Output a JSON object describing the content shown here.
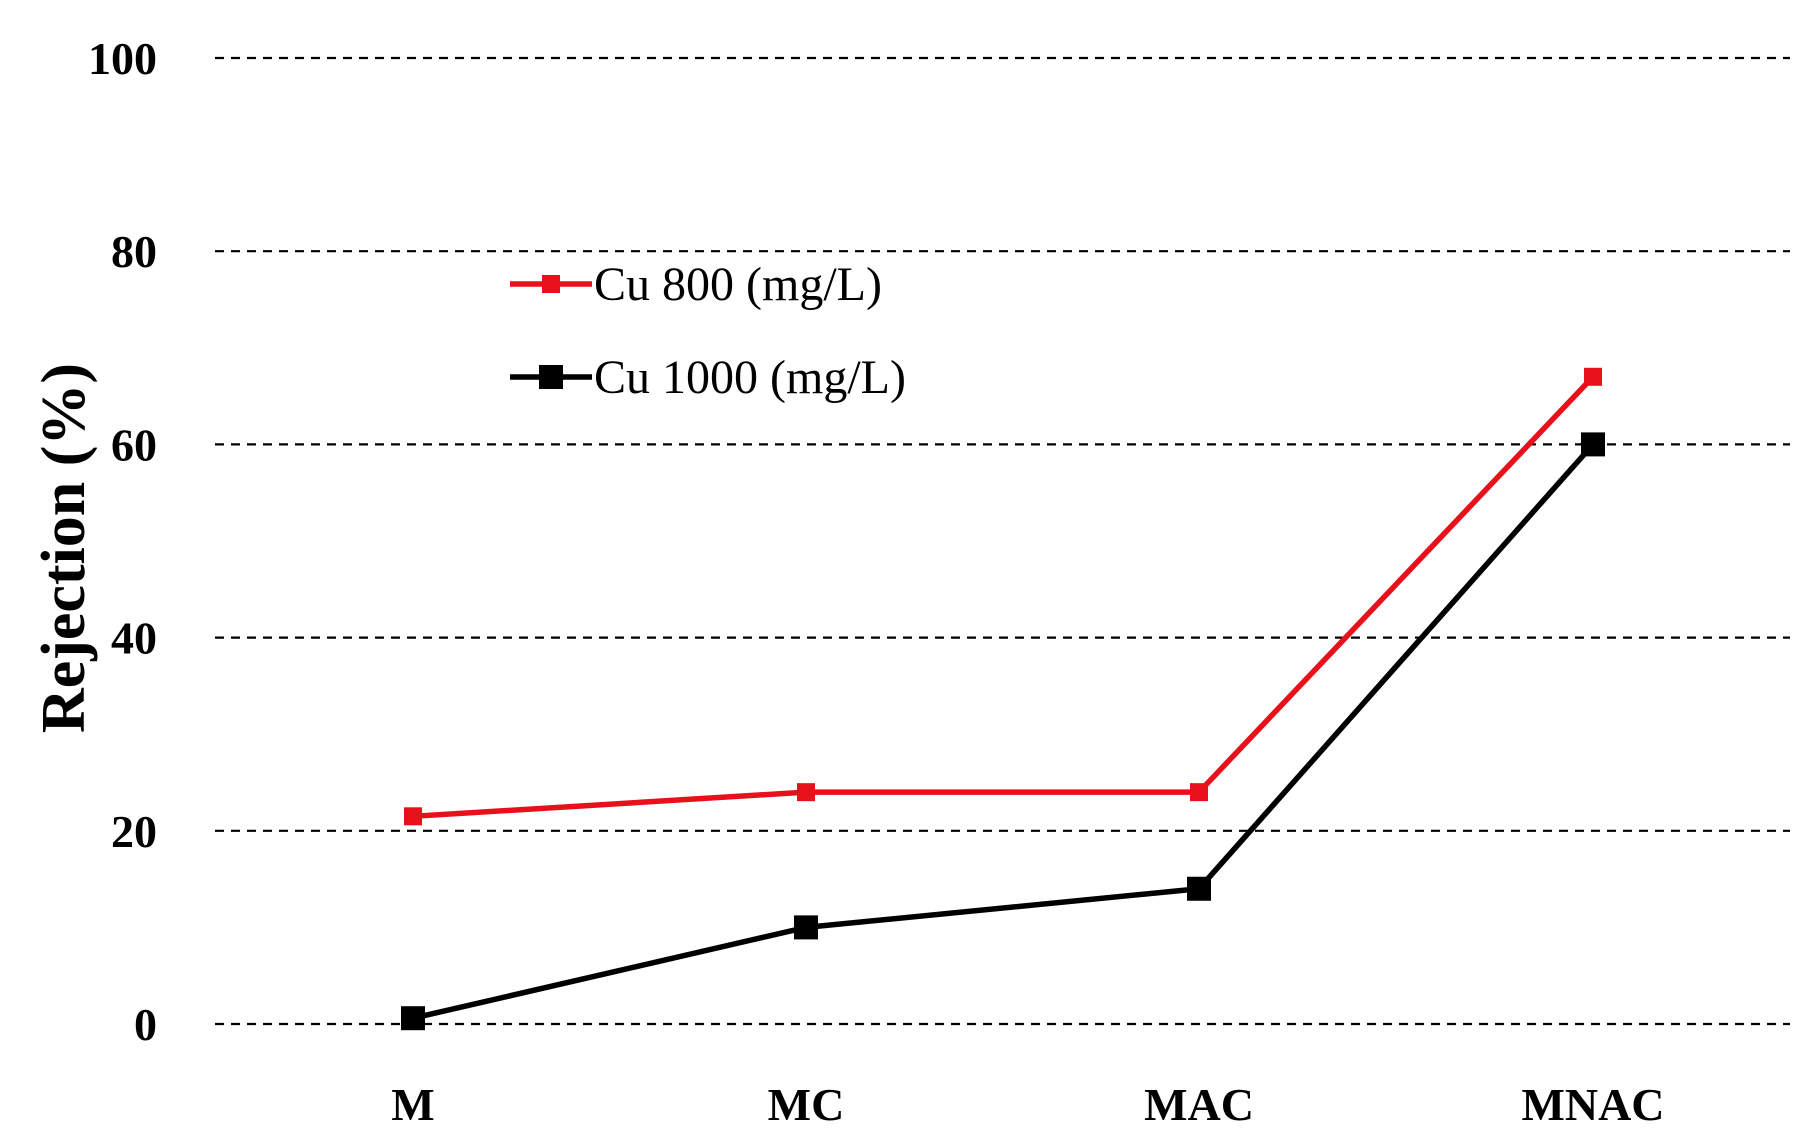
{
  "chart_data": {
    "type": "line",
    "title": "",
    "xlabel": "",
    "ylabel": "Rejection (%)",
    "categories": [
      "M",
      "MC",
      "MAC",
      "MNAC"
    ],
    "ylim": [
      0,
      100
    ],
    "yticks": [
      0,
      20,
      40,
      60,
      80,
      100
    ],
    "grid": "horizontal-dashed",
    "legend_position": "upper-left",
    "series": [
      {
        "name": "Cu 800 (mg/L)",
        "color": "#e8101a",
        "marker": "square",
        "values": [
          21.5,
          24,
          24,
          67
        ]
      },
      {
        "name": "Cu 1000 (mg/L)",
        "color": "#000000",
        "marker": "square",
        "values": [
          0.6,
          10,
          14,
          60
        ]
      }
    ]
  }
}
